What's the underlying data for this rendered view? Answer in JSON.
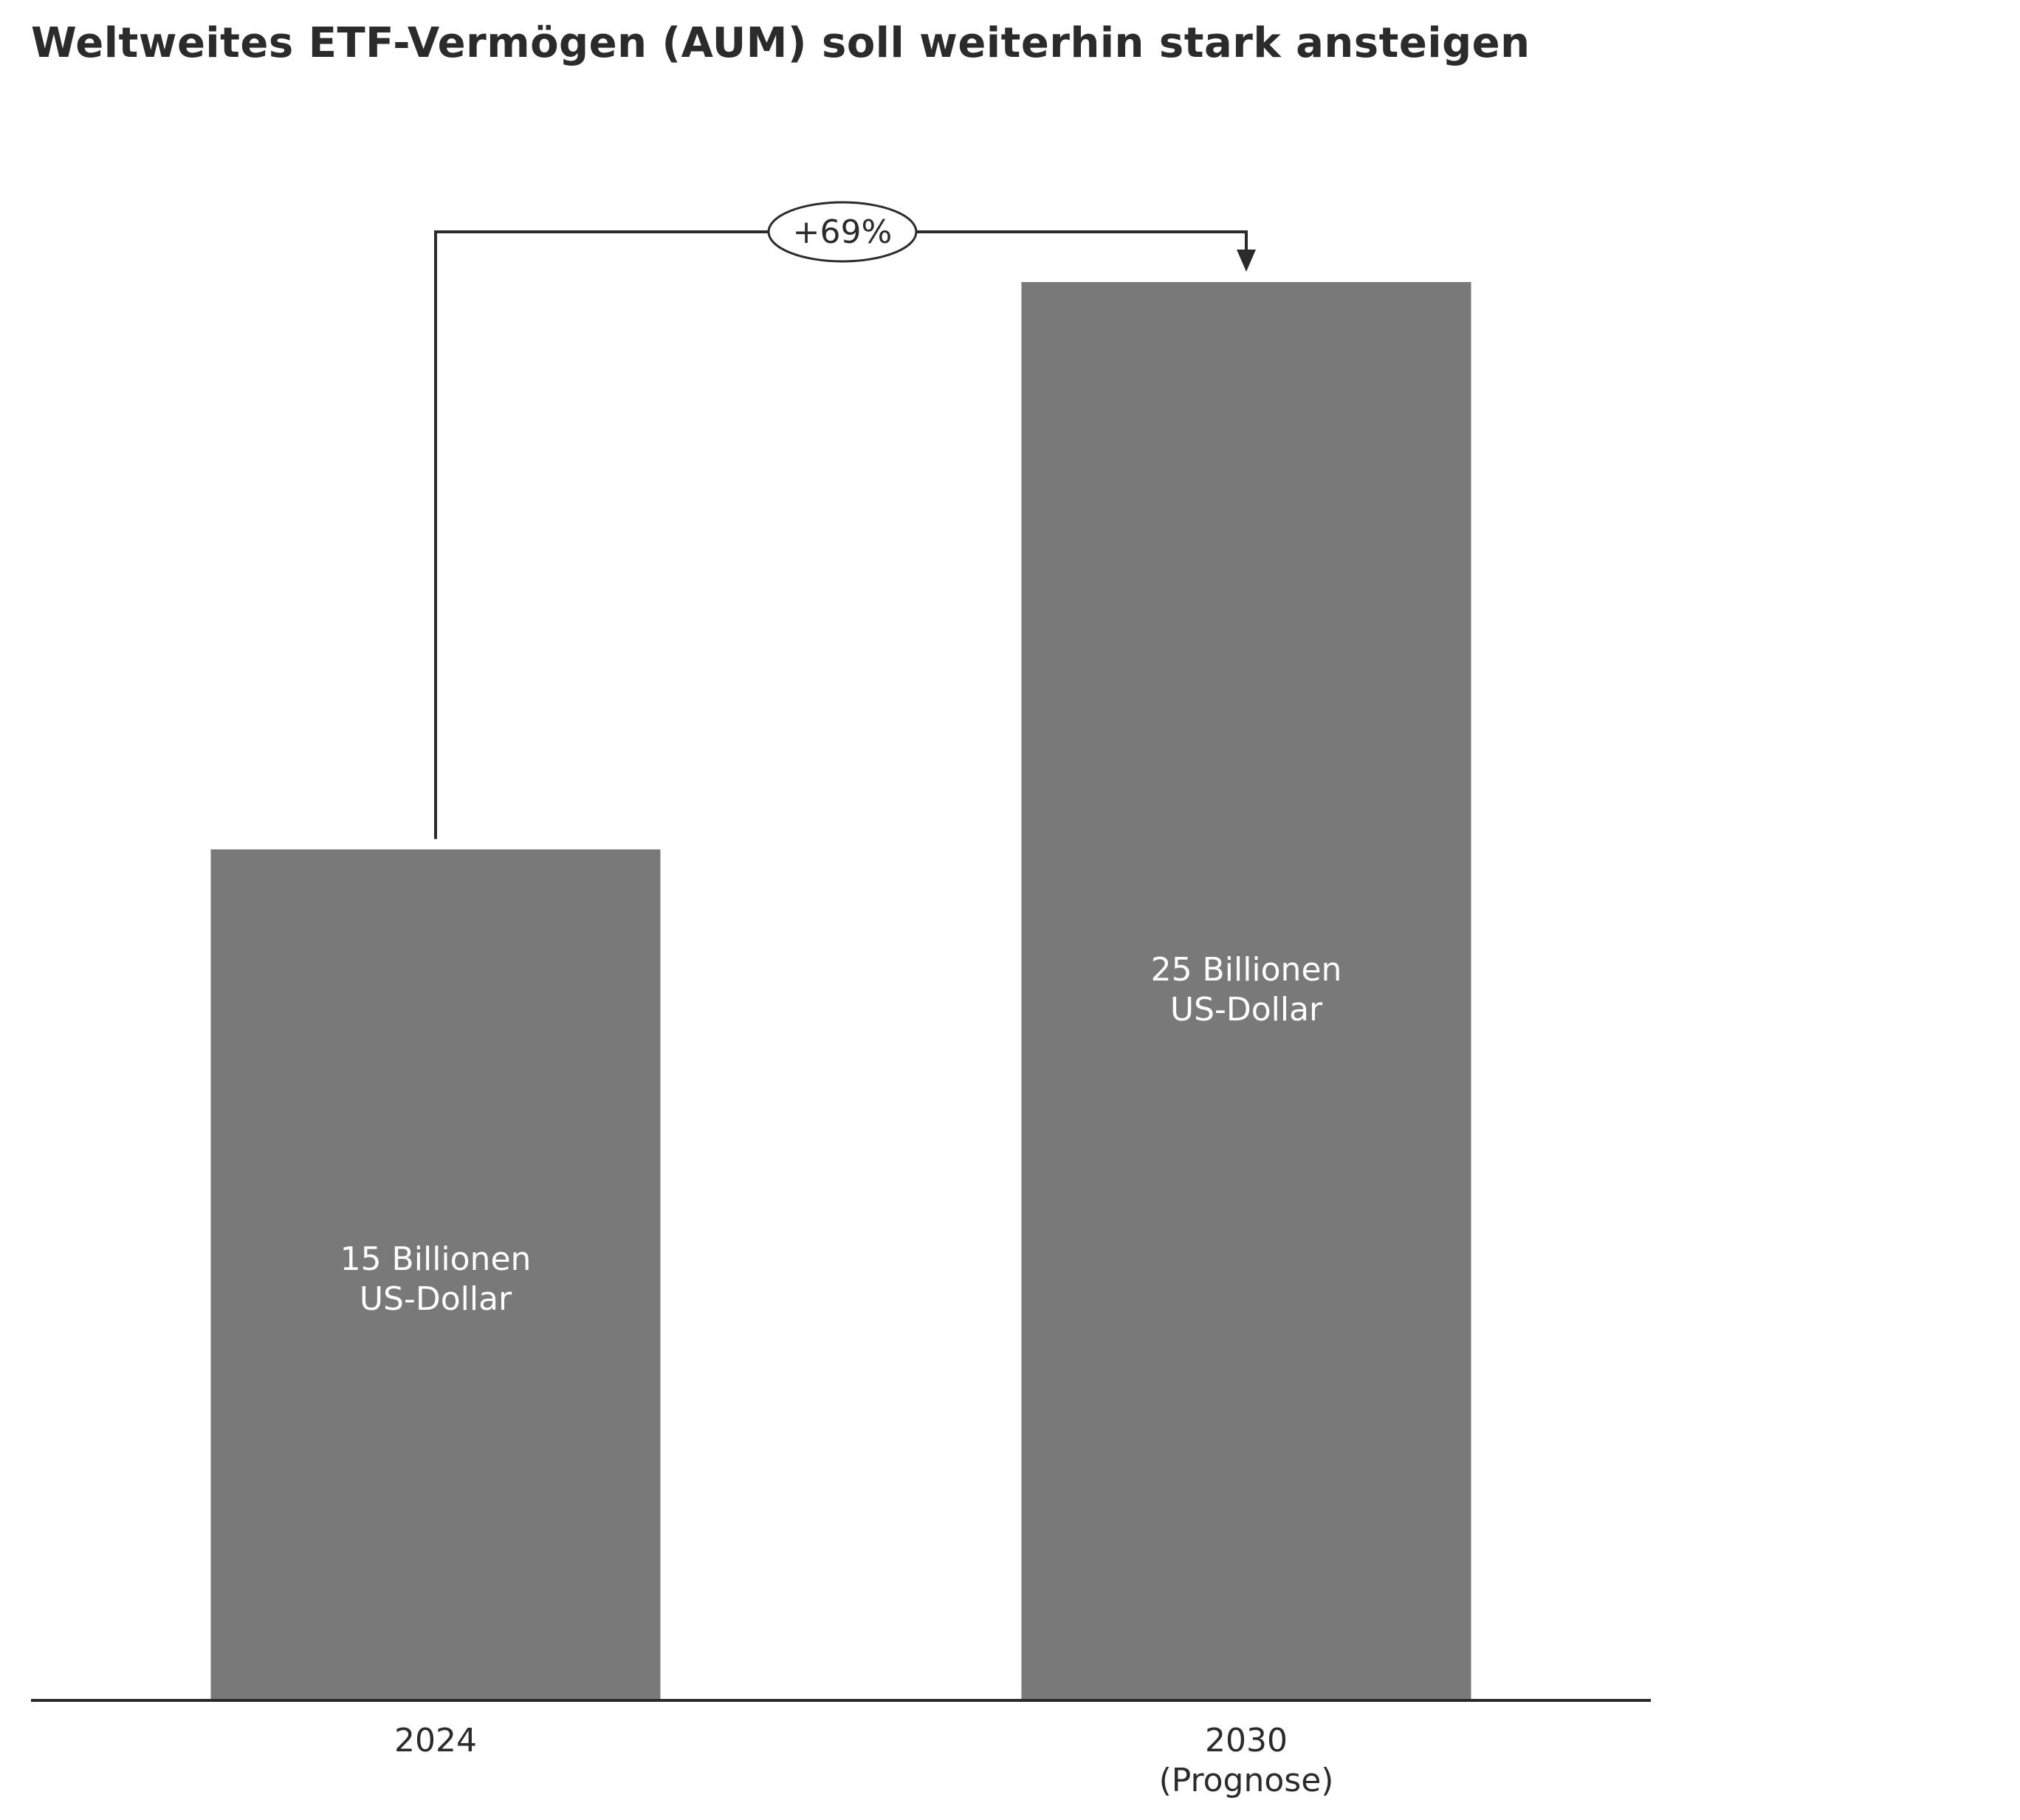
{
  "chart_data": {
    "type": "bar",
    "title": "Weltweites ETF-Vermögen (AUM) soll weiterhin stark ansteigen",
    "categories": [
      [
        "2024"
      ],
      [
        "2030",
        "(Prognose)"
      ]
    ],
    "values": [
      15,
      25
    ],
    "unit": "Billionen US-Dollar",
    "data_labels": [
      [
        "15 Billionen",
        "US-Dollar"
      ],
      [
        "25 Billionen",
        "US-Dollar"
      ]
    ],
    "annotation": "+69%",
    "ylim": [
      0,
      25
    ],
    "grid": false,
    "legend": "none",
    "colors": {
      "bar": "#797979",
      "text": "#2b2b2b",
      "axis": "#2b2b2b"
    }
  }
}
